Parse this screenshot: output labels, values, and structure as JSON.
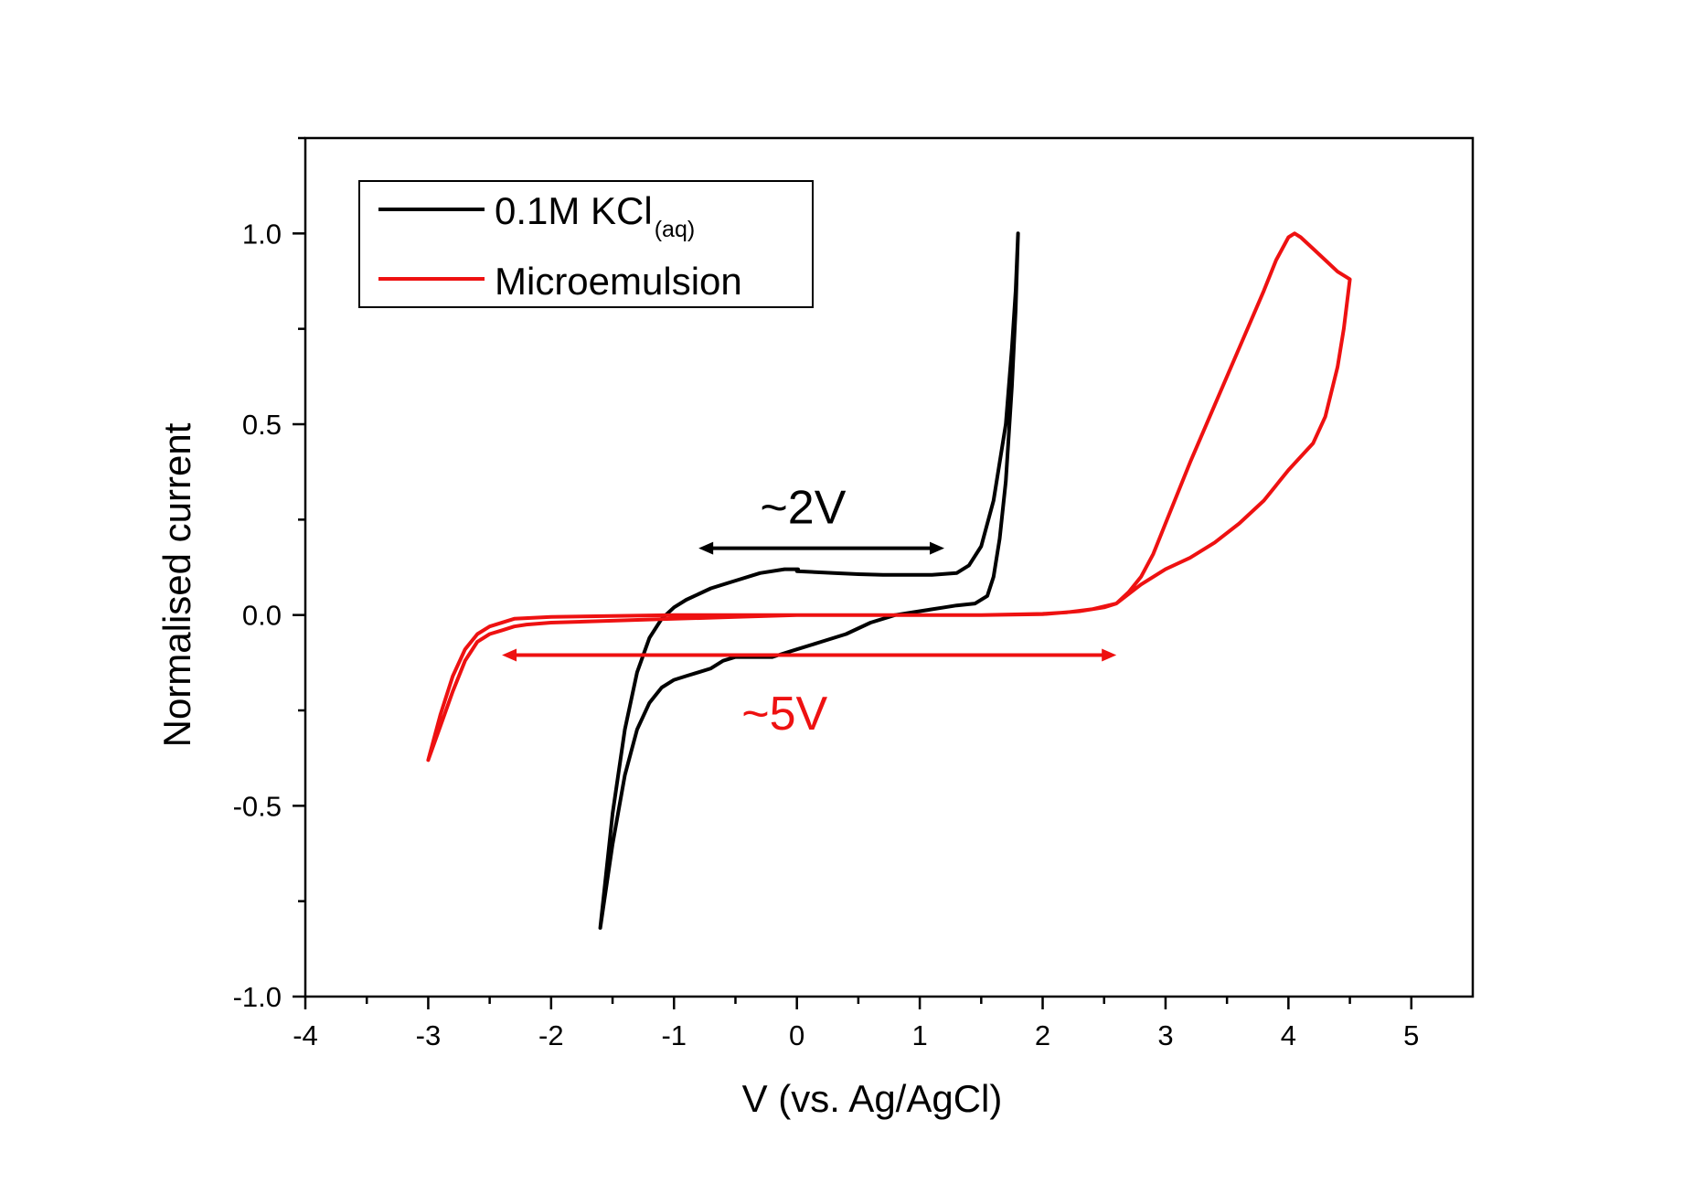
{
  "chart_data": {
    "type": "line",
    "xlabel": "V (vs. Ag/AgCl)",
    "ylabel": "Normalised current",
    "xlim": [
      -4,
      5.5
    ],
    "ylim": [
      -1.0,
      1.25
    ],
    "x_ticks": [
      -4,
      -3,
      -2,
      -1,
      0,
      1,
      2,
      3,
      4,
      5
    ],
    "x_tick_labels": [
      "-4",
      "-3",
      "-2",
      "-1",
      "0",
      "1",
      "2",
      "3",
      "4",
      "5"
    ],
    "y_ticks": [
      -1.0,
      -0.5,
      0.0,
      0.5,
      1.0
    ],
    "y_tick_labels": [
      "-1.0",
      "-0.5",
      "0.0",
      "0.5",
      "1.0"
    ],
    "grid": false,
    "legend": {
      "position": "top-left",
      "entries": [
        {
          "series": 0,
          "main": "0.1M KCl",
          "sub": "(aq)"
        },
        {
          "series": 1,
          "main": "Microemulsion",
          "sub": ""
        }
      ]
    },
    "series": [
      {
        "name": "0.1M KCl(aq)",
        "color": "#000000",
        "points": [
          [
            -1.6,
            -0.82
          ],
          [
            -1.5,
            -0.6
          ],
          [
            -1.4,
            -0.42
          ],
          [
            -1.3,
            -0.3
          ],
          [
            -1.2,
            -0.23
          ],
          [
            -1.1,
            -0.19
          ],
          [
            -1.0,
            -0.17
          ],
          [
            -0.9,
            -0.16
          ],
          [
            -0.8,
            -0.15
          ],
          [
            -0.7,
            -0.14
          ],
          [
            -0.6,
            -0.12
          ],
          [
            -0.5,
            -0.11
          ],
          [
            -0.4,
            -0.11
          ],
          [
            -0.3,
            -0.11
          ],
          [
            -0.2,
            -0.11
          ],
          [
            -0.1,
            -0.1
          ],
          [
            0.0,
            -0.09
          ],
          [
            0.2,
            -0.07
          ],
          [
            0.4,
            -0.05
          ],
          [
            0.6,
            -0.02
          ],
          [
            0.8,
            0.0
          ],
          [
            1.0,
            0.01
          ],
          [
            1.2,
            0.02
          ],
          [
            1.3,
            0.025
          ],
          [
            1.45,
            0.03
          ],
          [
            1.55,
            0.05
          ],
          [
            1.6,
            0.1
          ],
          [
            1.65,
            0.2
          ],
          [
            1.7,
            0.35
          ],
          [
            1.75,
            0.6
          ],
          [
            1.78,
            0.8
          ],
          [
            1.8,
            1.0
          ],
          [
            1.78,
            0.85
          ],
          [
            1.75,
            0.7
          ],
          [
            1.7,
            0.5
          ],
          [
            1.6,
            0.3
          ],
          [
            1.5,
            0.18
          ],
          [
            1.4,
            0.13
          ],
          [
            1.3,
            0.11
          ],
          [
            1.1,
            0.105
          ],
          [
            0.9,
            0.105
          ],
          [
            0.7,
            0.105
          ],
          [
            0.5,
            0.107
          ],
          [
            0.3,
            0.11
          ],
          [
            0.0,
            0.115
          ],
          [
            0.01,
            0.12
          ],
          [
            -0.1,
            0.12
          ],
          [
            -0.3,
            0.11
          ],
          [
            -0.5,
            0.09
          ],
          [
            -0.7,
            0.07
          ],
          [
            -0.9,
            0.04
          ],
          [
            -1.0,
            0.02
          ],
          [
            -1.1,
            -0.01
          ],
          [
            -1.2,
            -0.06
          ],
          [
            -1.3,
            -0.15
          ],
          [
            -1.4,
            -0.3
          ],
          [
            -1.5,
            -0.52
          ],
          [
            -1.6,
            -0.82
          ]
        ]
      },
      {
        "name": "Microemulsion",
        "color": "#ee1111",
        "points": [
          [
            -3.0,
            -0.38
          ],
          [
            -2.9,
            -0.29
          ],
          [
            -2.8,
            -0.2
          ],
          [
            -2.7,
            -0.12
          ],
          [
            -2.6,
            -0.07
          ],
          [
            -2.5,
            -0.05
          ],
          [
            -2.4,
            -0.04
          ],
          [
            -2.3,
            -0.03
          ],
          [
            -2.2,
            -0.025
          ],
          [
            -2.0,
            -0.02
          ],
          [
            -1.5,
            -0.015
          ],
          [
            -1.0,
            -0.01
          ],
          [
            -0.5,
            -0.005
          ],
          [
            0.0,
            0.0
          ],
          [
            0.5,
            0.0
          ],
          [
            1.0,
            0.0
          ],
          [
            1.5,
            0.0
          ],
          [
            2.0,
            0.002
          ],
          [
            2.3,
            0.01
          ],
          [
            2.5,
            0.02
          ],
          [
            2.6,
            0.03
          ],
          [
            2.7,
            0.06
          ],
          [
            2.8,
            0.1
          ],
          [
            2.9,
            0.16
          ],
          [
            3.0,
            0.24
          ],
          [
            3.2,
            0.4
          ],
          [
            3.4,
            0.55
          ],
          [
            3.6,
            0.7
          ],
          [
            3.8,
            0.85
          ],
          [
            3.9,
            0.93
          ],
          [
            4.0,
            0.99
          ],
          [
            4.05,
            1.0
          ],
          [
            4.1,
            0.99
          ],
          [
            4.2,
            0.96
          ],
          [
            4.3,
            0.93
          ],
          [
            4.4,
            0.9
          ],
          [
            4.5,
            0.88
          ],
          [
            4.45,
            0.75
          ],
          [
            4.4,
            0.65
          ],
          [
            4.3,
            0.52
          ],
          [
            4.2,
            0.45
          ],
          [
            4.0,
            0.38
          ],
          [
            3.8,
            0.3
          ],
          [
            3.6,
            0.24
          ],
          [
            3.4,
            0.19
          ],
          [
            3.2,
            0.15
          ],
          [
            3.0,
            0.12
          ],
          [
            2.8,
            0.08
          ],
          [
            2.6,
            0.03
          ],
          [
            2.4,
            0.015
          ],
          [
            2.2,
            0.007
          ],
          [
            2.0,
            0.003
          ],
          [
            1.5,
            0.0
          ],
          [
            1.0,
            0.0
          ],
          [
            0.0,
            0.0
          ],
          [
            -1.0,
            0.0
          ],
          [
            -2.0,
            -0.005
          ],
          [
            -2.3,
            -0.01
          ],
          [
            -2.5,
            -0.03
          ],
          [
            -2.6,
            -0.05
          ],
          [
            -2.7,
            -0.09
          ],
          [
            -2.8,
            -0.16
          ],
          [
            -2.9,
            -0.26
          ],
          [
            -3.0,
            -0.38
          ]
        ]
      }
    ],
    "annotations": [
      {
        "text": "~2V",
        "color": "#000000",
        "x_from": -0.8,
        "x_to": 1.2,
        "y": 0.175,
        "label_x": 0.05,
        "label_y": 0.24
      },
      {
        "text": "~5V",
        "color": "#ee1111",
        "x_from": -2.4,
        "x_to": 2.6,
        "y": -0.105,
        "label_x": -0.1,
        "label_y": -0.3
      }
    ]
  }
}
